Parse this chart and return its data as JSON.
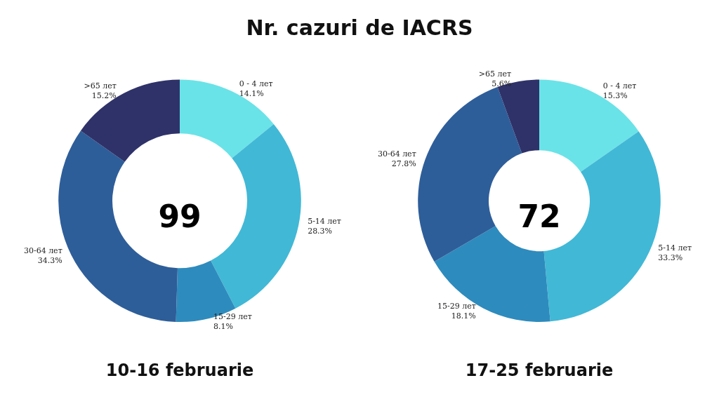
{
  "chart_data": [
    {
      "type": "donut",
      "title": "Nr. cazuri de IACRS",
      "subtitle": "10-16 februarie",
      "annotations": [
        "99"
      ],
      "categories": [
        "0 - 4 лет",
        "5-14 лет",
        "15-29 лет",
        "30-64 лет",
        ">65 лет"
      ],
      "values": [
        14.1,
        28.3,
        8.1,
        34.3,
        15.2
      ],
      "value_labels": [
        "14.1%",
        "28.3%",
        "8.1%",
        "34.3%",
        "15.2%"
      ],
      "colors": [
        "#6ae3e8",
        "#41b8d6",
        "#2e8bbd",
        "#2e5e99",
        "#2f3269"
      ]
    },
    {
      "type": "donut",
      "subtitle": "17-25 februarie",
      "annotations": [
        "72"
      ],
      "categories": [
        "0 - 4 лет",
        "5-14 лет",
        "15-29 лет",
        "30-64 лет",
        ">65 лет"
      ],
      "values": [
        15.3,
        33.3,
        18.1,
        27.8,
        5.6
      ],
      "value_labels": [
        "15.3%",
        "33.3%",
        "18.1%",
        "27.8%",
        "5.6%"
      ],
      "colors": [
        "#6ae3e8",
        "#41b8d6",
        "#2e8bbd",
        "#2e5e99",
        "#2f3269"
      ]
    }
  ]
}
